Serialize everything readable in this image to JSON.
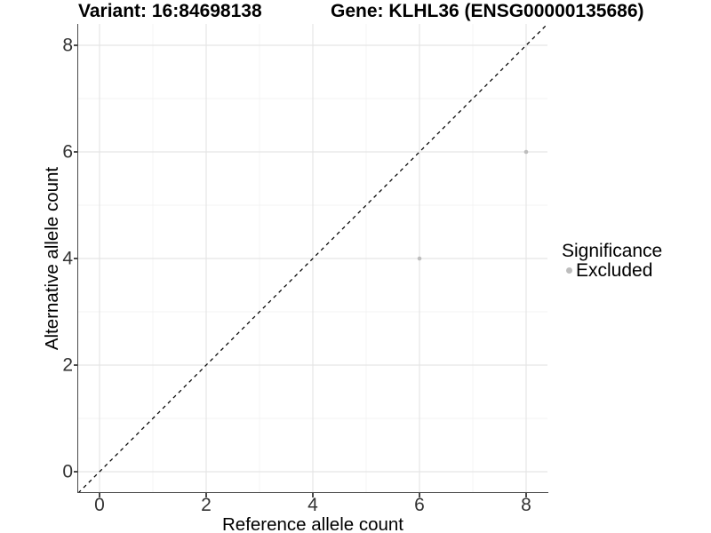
{
  "header": {
    "variant_title": "Variant: 16:84698138",
    "gene_title": "Gene: KLHL36 (ENSG00000135686)"
  },
  "chart_data": {
    "type": "scatter",
    "xlabel": "Reference allele count",
    "ylabel": "Alternative allele count",
    "xlim": [
      -0.4,
      8.4
    ],
    "ylim": [
      -0.4,
      8.4
    ],
    "x_ticks": [
      0,
      2,
      4,
      6,
      8
    ],
    "y_ticks": [
      0,
      2,
      4,
      6,
      8
    ],
    "x_minor_breaks": [
      1,
      3,
      5,
      7
    ],
    "y_minor_breaks": [
      1,
      3,
      5,
      7
    ],
    "grid": "on",
    "points": [
      {
        "x": 6,
        "y": 4,
        "series": "Excluded"
      },
      {
        "x": 8,
        "y": 6,
        "series": "Excluded"
      }
    ],
    "reference_line": {
      "slope": 1,
      "intercept": 0,
      "style": "dashed",
      "color": "#000000"
    },
    "legend": {
      "title": "Significance",
      "position": "right",
      "items": [
        {
          "label": "Excluded",
          "color": "#bdbdbd"
        }
      ]
    }
  },
  "colors": {
    "background": "#ffffff",
    "axis_line": "#4a4a4a",
    "tick_label": "#333333",
    "grid_major": "#e5e5e5",
    "grid_minor": "#f3f3f3",
    "point": "#bdbdbd"
  }
}
